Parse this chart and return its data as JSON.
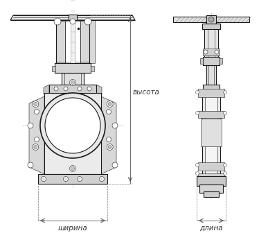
{
  "bg_color": "#ffffff",
  "line_color": "#1a1a1a",
  "dim_color": "#333333",
  "label_высота": "высота",
  "label_ширина": "ширина",
  "label_длина": "длина",
  "label_fontsize": 7.5,
  "fig_width": 4.0,
  "fig_height": 3.46,
  "dpi": 100,
  "lw_main": 0.8,
  "lw_thin": 0.4,
  "lw_thick": 1.2
}
